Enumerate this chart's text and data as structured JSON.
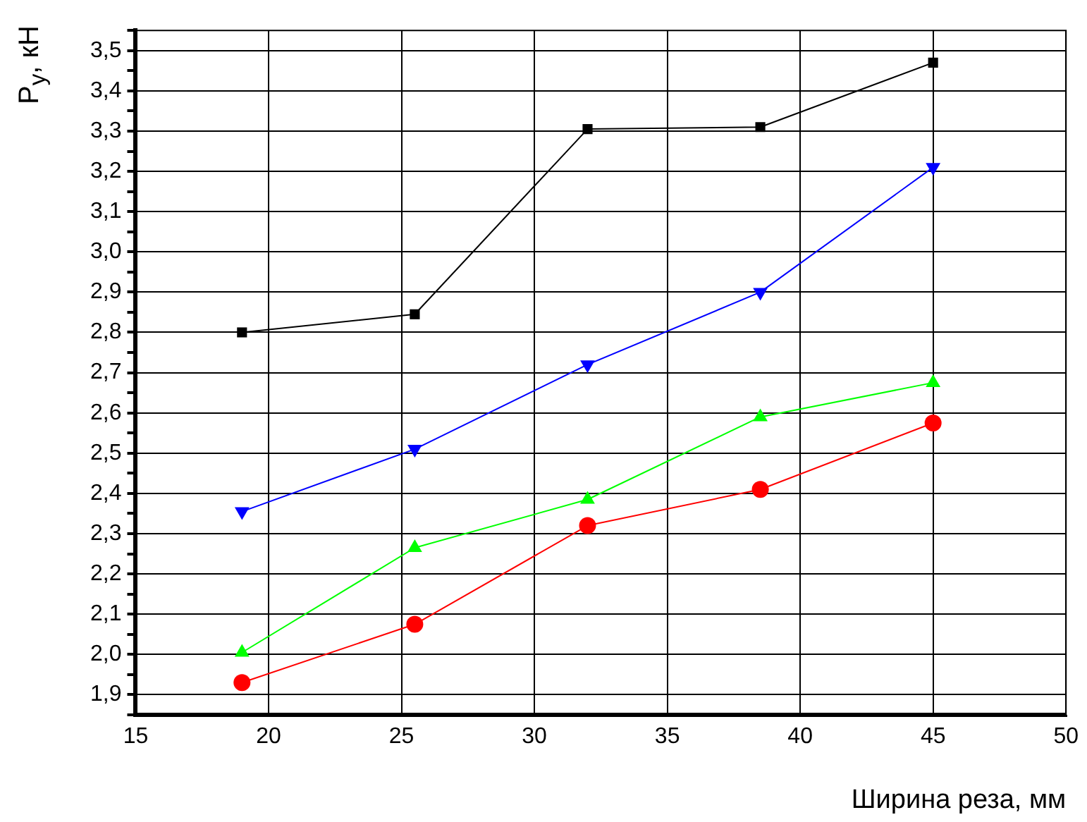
{
  "chart_data": {
    "type": "line",
    "xlabel": "Ширина реза, мм",
    "ylabel": "P$_{y}$, кН",
    "x": [
      19,
      25.5,
      32,
      38.5,
      45
    ],
    "series": [
      {
        "color": "#000000",
        "marker": "square",
        "values": [
          2.8,
          2.845,
          3.305,
          3.31,
          3.47
        ]
      },
      {
        "color": "#0000ff",
        "marker": "triangle_down",
        "values": [
          2.355,
          2.51,
          2.72,
          2.9,
          3.21
        ]
      },
      {
        "color": "#00ff00",
        "marker": "triangle",
        "values": [
          2.005,
          2.265,
          2.385,
          2.59,
          2.675
        ]
      },
      {
        "color": "#ff0000",
        "marker": "circle",
        "values": [
          1.93,
          2.075,
          2.32,
          2.41,
          2.575
        ]
      }
    ],
    "xlim": [
      15,
      50
    ],
    "xticks": [
      15,
      {
        "value": 17.5,
        "label": null
      },
      20,
      {
        "value": 22.5,
        "label": null
      },
      25,
      {
        "value": 27.5,
        "label": null
      },
      30,
      {
        "value": 32.5,
        "label": null
      },
      35,
      {
        "value": 37.5,
        "label": null
      },
      40,
      {
        "value": 42.5,
        "label": null
      },
      45,
      {
        "value": 47.5,
        "label": null
      },
      50
    ],
    "ylim": [
      1.85,
      3.55
    ],
    "yticks": [
      {
        "value": 1.85,
        "label": null
      },
      {
        "value": 1.9,
        "label": "1,9"
      },
      {
        "value": 1.95,
        "label": null
      },
      {
        "value": 2.0,
        "label": "2,0"
      },
      {
        "value": 2.05,
        "label": null
      },
      {
        "value": 2.1,
        "label": "2,1"
      },
      {
        "value": 2.15,
        "label": null
      },
      {
        "value": 2.2,
        "label": "2,2"
      },
      {
        "value": 2.25,
        "label": null
      },
      {
        "value": 2.3,
        "label": "2,3"
      },
      {
        "value": 2.35,
        "label": null
      },
      {
        "value": 2.4,
        "label": "2,4"
      },
      {
        "value": 2.45,
        "label": null
      },
      {
        "value": 2.5,
        "label": "2,5"
      },
      {
        "value": 2.55,
        "label": null
      },
      {
        "value": 2.6,
        "label": "2,6"
      },
      {
        "value": 2.65,
        "label": null
      },
      {
        "value": 2.7,
        "label": "2,7"
      },
      {
        "value": 2.75,
        "label": null
      },
      {
        "value": 2.8,
        "label": "2,8"
      },
      {
        "value": 2.85,
        "label": null
      },
      {
        "value": 2.9,
        "label": "2,9"
      },
      {
        "value": 2.95,
        "label": null
      },
      {
        "value": 3.0,
        "label": "3,0"
      },
      {
        "value": 3.05,
        "label": null
      },
      {
        "value": 3.1,
        "label": "3,1"
      },
      {
        "value": 3.15,
        "label": null
      },
      {
        "value": 3.2,
        "label": "3,2"
      },
      {
        "value": 3.25,
        "label": null
      },
      {
        "value": 3.3,
        "label": "3,3"
      },
      {
        "value": 3.35,
        "label": null
      },
      {
        "value": 3.4,
        "label": "3,4"
      },
      {
        "value": 3.45,
        "label": null
      },
      {
        "value": 3.5,
        "label": "3,5"
      },
      {
        "value": 3.55,
        "label": null
      }
    ],
    "grid": true,
    "legend": false,
    "line_style": "solid"
  }
}
